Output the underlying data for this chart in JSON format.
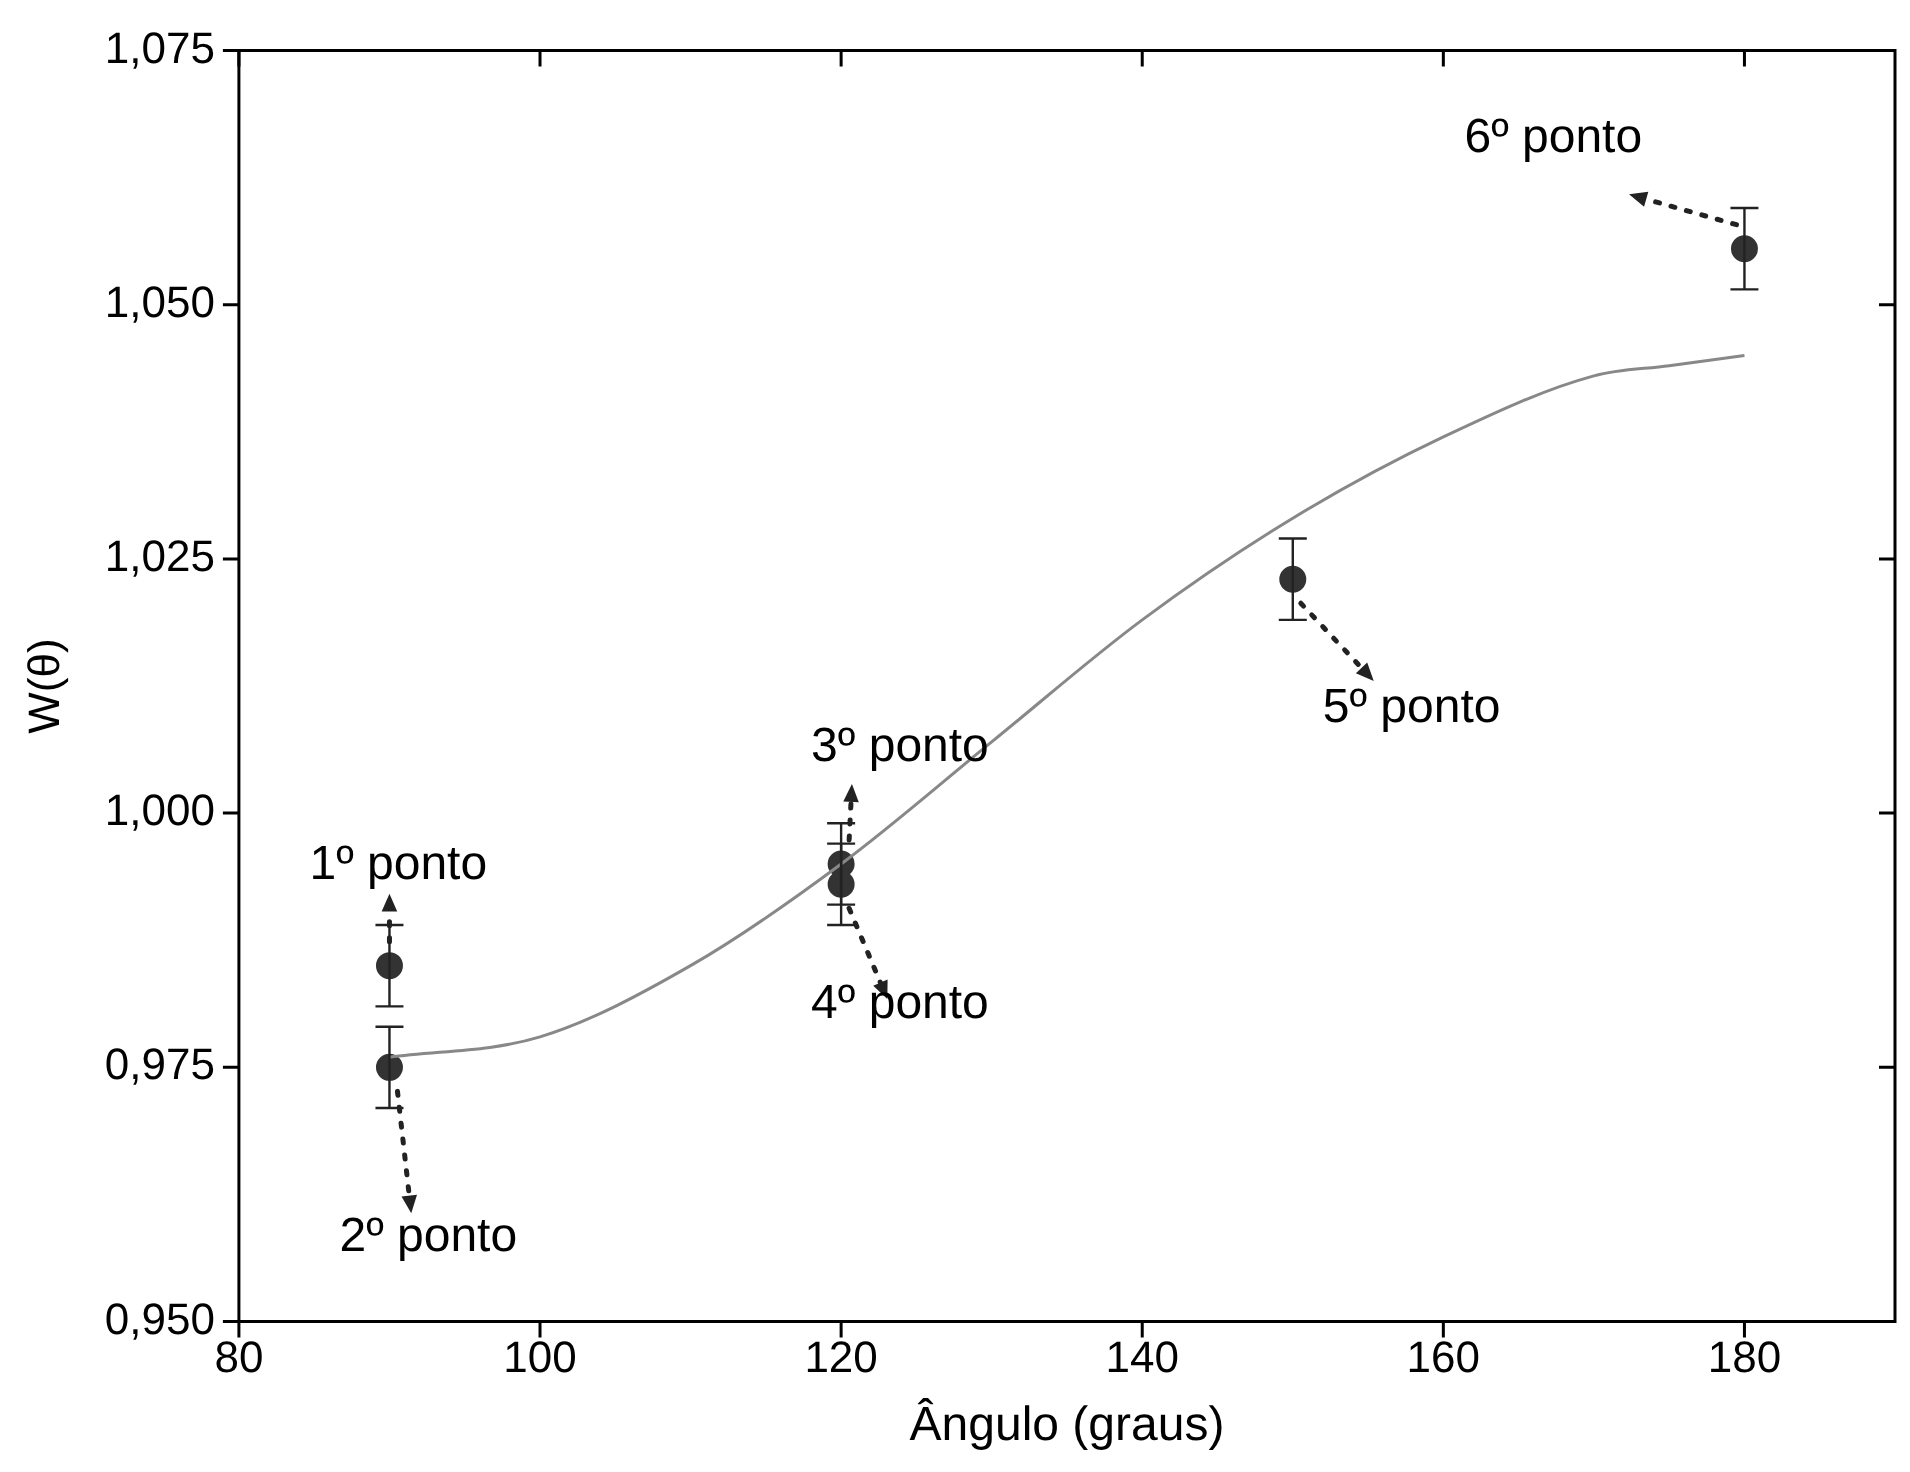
{
  "chart_data": {
    "type": "scatter",
    "xlabel": "Ângulo (graus)",
    "ylabel": "W(θ)",
    "xlim": [
      80,
      190
    ],
    "xticks": [
      80,
      100,
      120,
      140,
      160,
      180
    ],
    "ylim": [
      0.95,
      1.075
    ],
    "yticks": [
      {
        "value": 0.95,
        "label": "0,950"
      },
      {
        "value": 0.975,
        "label": "0,975"
      },
      {
        "value": 1.0,
        "label": "1,000"
      },
      {
        "value": 1.025,
        "label": "1,025"
      },
      {
        "value": 1.05,
        "label": "1,050"
      },
      {
        "value": 1.075,
        "label": "1,075"
      }
    ],
    "grid": false,
    "legend": false,
    "marker": "circle",
    "series": [
      {
        "type": "scatter",
        "color": "#333333",
        "x": [
          90,
          90,
          120,
          120,
          150,
          180
        ],
        "values": [
          0.985,
          0.975,
          0.995,
          0.993,
          1.023,
          1.0555
        ],
        "errors": [
          0.004,
          0.004,
          0.004,
          0.004,
          0.004,
          0.004
        ]
      },
      {
        "type": "line",
        "color": "#888888",
        "marker": "none",
        "x": [
          90,
          100,
          110,
          120,
          130,
          140,
          150,
          160,
          170,
          175,
          180
        ],
        "values": [
          0.976,
          0.978,
          0.985,
          0.995,
          1.007,
          1.019,
          1.029,
          1.037,
          1.043,
          1.044,
          1.045
        ]
      }
    ],
    "annotations": [
      {
        "text": "1º ponto",
        "x": 90,
        "y": 0.985
      },
      {
        "text": "2º ponto",
        "x": 90,
        "y": 0.975
      },
      {
        "text": "3º ponto",
        "x": 120,
        "y": 0.995
      },
      {
        "text": "4º ponto",
        "x": 120,
        "y": 0.993
      },
      {
        "text": "5º ponto",
        "x": 150,
        "y": 1.023
      },
      {
        "text": "6º ponto",
        "x": 180,
        "y": 1.0555
      }
    ]
  }
}
